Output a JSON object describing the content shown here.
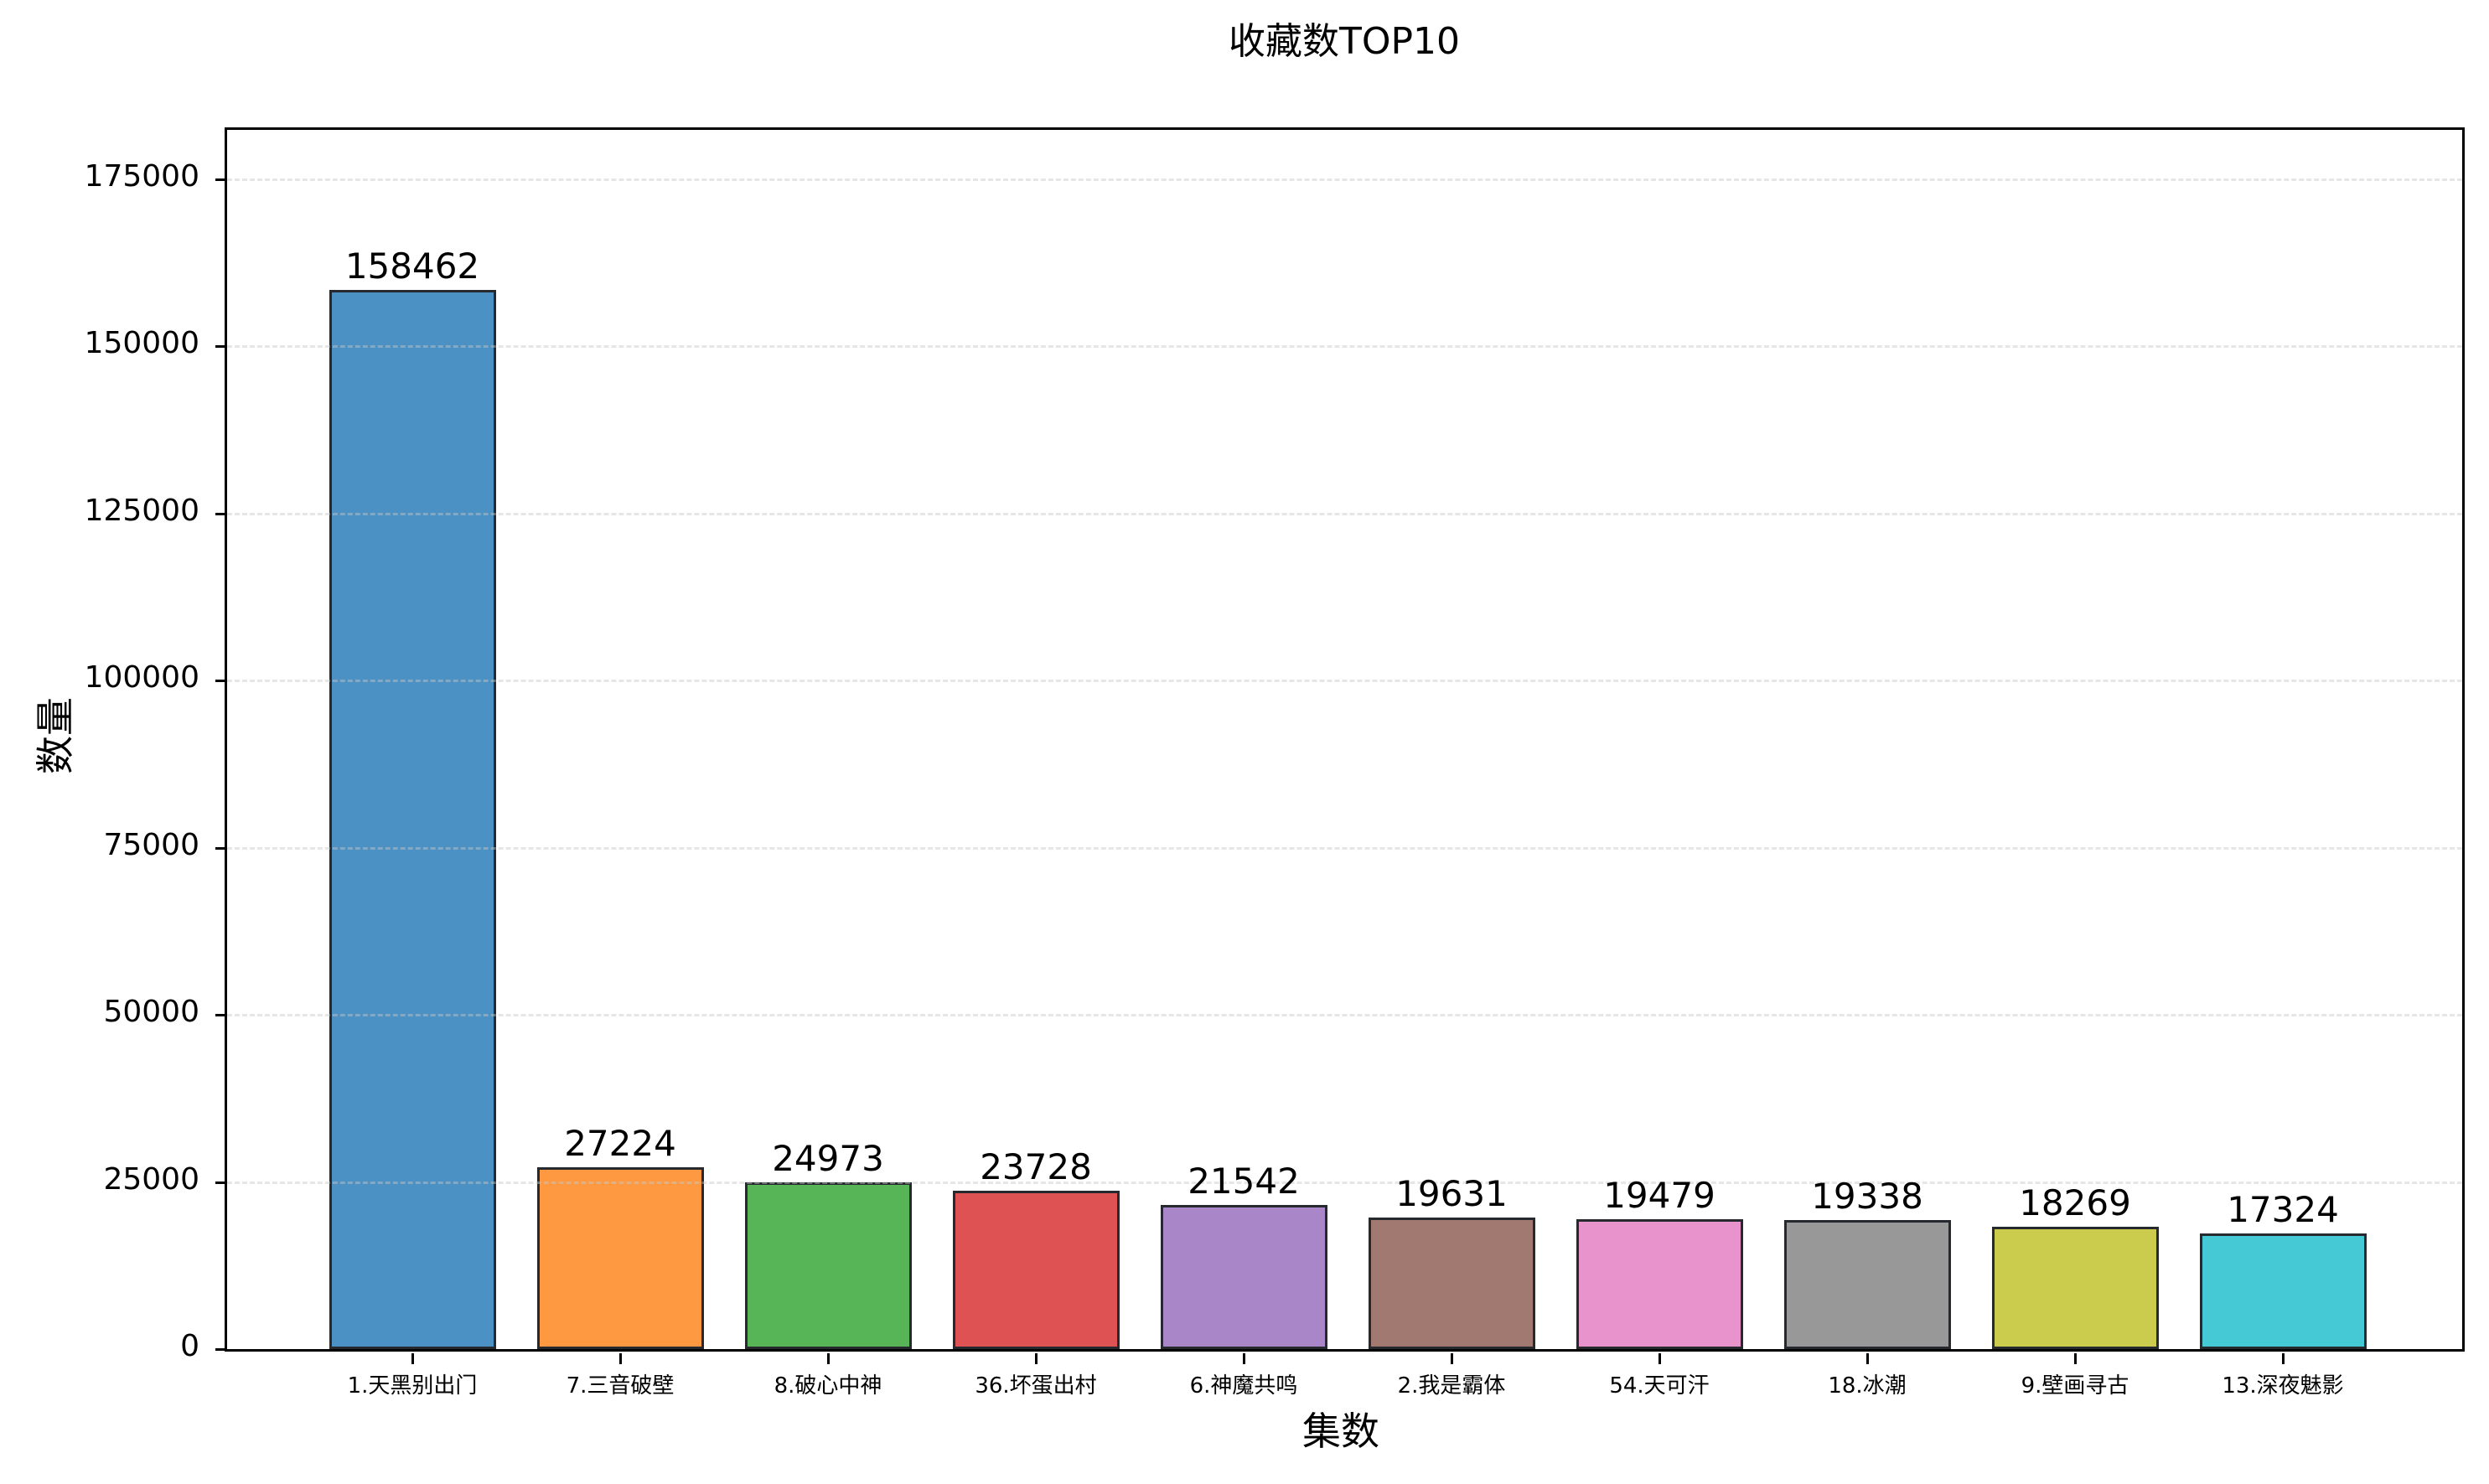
{
  "chart_data": {
    "type": "bar",
    "title": "收藏数TOP10",
    "xlabel": "集数",
    "ylabel": "数量",
    "categories": [
      "1.天黑别出门",
      "7.三音破壁",
      "8.破心中神",
      "36.坏蛋出村",
      "6.神魔共鸣",
      "2.我是霸体",
      "54.天可汗",
      "18.冰潮",
      "9.壁画寻古",
      "13.深夜魅影"
    ],
    "values": [
      158462,
      27224,
      24973,
      23728,
      21542,
      19631,
      19479,
      19338,
      18269,
      17324
    ],
    "value_labels": [
      "158462",
      "27224",
      "24973",
      "23728",
      "21542",
      "19631",
      "19479",
      "19338",
      "18269",
      "17324"
    ],
    "colors": [
      "#4c91c3",
      "#fe9941",
      "#57b457",
      "#df5253",
      "#a886c7",
      "#a27970",
      "#e893cb",
      "#989898",
      "#cbcb4e",
      "#45c9d5"
    ],
    "ylim": [
      0,
      182400
    ],
    "yticks": [
      0,
      25000,
      50000,
      75000,
      100000,
      125000,
      150000,
      175000
    ],
    "ytick_labels": [
      "0",
      "25000",
      "50000",
      "75000",
      "100000",
      "125000",
      "150000",
      "175000"
    ],
    "grid": "y dashed, light gray",
    "legend": "none",
    "bar_edgecolor": "#262a2e"
  }
}
